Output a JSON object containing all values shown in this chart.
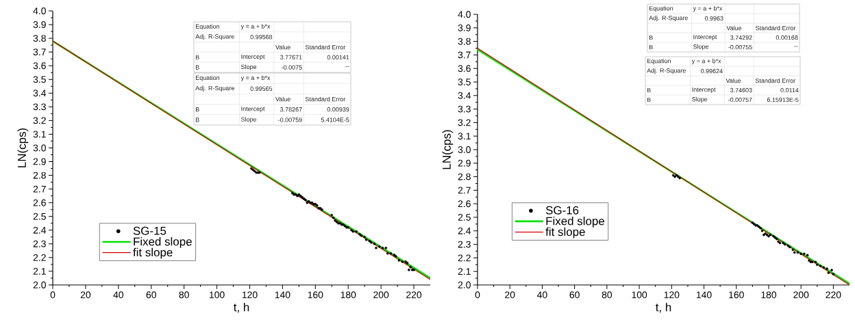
{
  "chart_data": [
    {
      "type": "scatter",
      "xlabel": "t, h",
      "ylabel": "LN(cps)",
      "xlim": [
        0,
        230
      ],
      "ylim": [
        2.0,
        4.0
      ],
      "xticks": [
        0,
        20,
        40,
        60,
        80,
        100,
        120,
        140,
        160,
        180,
        200,
        220
      ],
      "yticks": [
        {
          "value": 2.0,
          "label": "2.0"
        },
        {
          "value": 2.1,
          "label": "2.1"
        },
        {
          "value": 2.2,
          "label": "2.2"
        },
        {
          "value": 2.3,
          "label": "2.3"
        },
        {
          "value": 2.4,
          "label": "2.4"
        },
        {
          "value": 2.5,
          "label": "2.5"
        },
        {
          "value": 2.6,
          "label": "2.6"
        },
        {
          "value": 2.7,
          "label": "2.7"
        },
        {
          "value": 2.8,
          "label": "2.8"
        },
        {
          "value": 2.9,
          "label": "2.9"
        },
        {
          "value": 3.0,
          "label": "3.0"
        },
        {
          "value": 3.1,
          "label": "3.1"
        },
        {
          "value": 3.2,
          "label": "3.2"
        },
        {
          "value": 3.3,
          "label": "3.3"
        },
        {
          "value": 3.4,
          "label": "3.4"
        },
        {
          "value": 3.5,
          "label": "3.5"
        },
        {
          "value": 3.6,
          "label": "3.6"
        },
        {
          "value": 3.7,
          "label": "3.7"
        },
        {
          "value": 3.8,
          "label": "3.8"
        },
        {
          "value": 3.9,
          "label": "3.9"
        },
        {
          "value": 4.0,
          "label": "4.0"
        }
      ],
      "legend": "bottom left",
      "annotations": [
        "Equation",
        "y = a + b*x",
        "Adj. R-Square",
        "0.99568",
        "Value",
        "Standard Error",
        "B",
        "Intercept",
        "3.77671",
        "0.00141",
        "B",
        "Slope",
        "-0.0075",
        "--",
        "Equation",
        "y = a + b*x",
        "Adj. R-Square",
        "0.99565",
        "Value",
        "Standard Error",
        "B",
        "Intercept",
        "3.78267",
        "0.00939",
        "B",
        "Slope",
        "-0.00759",
        "5.4104E-5"
      ],
      "series": [
        {
          "name": "SG-15",
          "type": "scatter",
          "marker": "circle",
          "color": "#000000",
          "x": [
            121,
            122,
            123,
            124,
            125,
            126,
            146,
            147,
            148,
            149,
            150,
            151,
            152,
            153,
            154,
            155,
            156,
            157,
            158,
            159,
            160,
            161,
            162,
            163,
            164,
            170,
            171,
            172,
            173,
            174,
            175,
            176,
            177,
            178,
            179,
            180,
            182,
            183,
            185,
            187,
            188,
            190,
            191,
            193,
            194,
            196,
            197,
            199,
            201,
            203,
            204,
            206,
            208,
            209,
            211,
            213,
            215,
            216,
            217,
            218,
            219,
            220
          ],
          "values": [
            2.85,
            2.84,
            2.83,
            2.82,
            2.82,
            2.82,
            2.67,
            2.66,
            2.66,
            2.65,
            2.66,
            2.65,
            2.64,
            2.63,
            2.62,
            2.6,
            2.61,
            2.6,
            2.6,
            2.59,
            2.59,
            2.58,
            2.56,
            2.56,
            2.55,
            2.51,
            2.49,
            2.47,
            2.46,
            2.45,
            2.45,
            2.44,
            2.44,
            2.43,
            2.42,
            2.42,
            2.4,
            2.39,
            2.39,
            2.37,
            2.36,
            2.35,
            2.33,
            2.32,
            2.31,
            2.3,
            2.27,
            2.28,
            2.27,
            2.27,
            2.23,
            2.23,
            2.22,
            2.21,
            2.18,
            2.17,
            2.17,
            2.16,
            2.11,
            2.13,
            2.11,
            2.11
          ]
        },
        {
          "name": "Fixed slope",
          "type": "line",
          "marker": "none",
          "color": "#00e000",
          "x": [
            0,
            230
          ],
          "values": [
            3.78,
            2.05
          ]
        },
        {
          "name": "fit slope",
          "type": "line",
          "marker": "none",
          "color": "#d40000",
          "x": [
            0,
            230
          ],
          "values": [
            3.78,
            2.04
          ]
        }
      ]
    },
    {
      "type": "scatter",
      "xlabel": "t, h",
      "ylabel": "LN(cps)",
      "xlim": [
        0,
        230
      ],
      "ylim": [
        2.0,
        4.0
      ],
      "xticks": [
        0,
        20,
        40,
        60,
        80,
        100,
        120,
        140,
        160,
        180,
        200,
        220
      ],
      "yticks": [
        {
          "value": 2.0,
          "label": "2.0"
        },
        {
          "value": 2.1,
          "label": "2.1"
        },
        {
          "value": 2.2,
          "label": "2.2"
        },
        {
          "value": 2.3,
          "label": "2.3"
        },
        {
          "value": 2.4,
          "label": "2.4"
        },
        {
          "value": 2.5,
          "label": "2.5"
        },
        {
          "value": 2.6,
          "label": "2.6"
        },
        {
          "value": 2.7,
          "label": "2.7"
        },
        {
          "value": 2.8,
          "label": "2.8"
        },
        {
          "value": 2.9,
          "label": "2.9"
        },
        {
          "value": 3.0,
          "label": "3.0"
        },
        {
          "value": 3.1,
          "label": "3.1"
        },
        {
          "value": 3.2,
          "label": "3.2"
        },
        {
          "value": 3.3,
          "label": "3.3"
        },
        {
          "value": 3.4,
          "label": "3.4"
        },
        {
          "value": 3.5,
          "label": "3.5"
        },
        {
          "value": 3.6,
          "label": "3.6"
        },
        {
          "value": 3.7,
          "label": "3.7"
        },
        {
          "value": 3.8,
          "label": "3.8"
        },
        {
          "value": 3.9,
          "label": "3.9"
        },
        {
          "value": 4.0,
          "label": "4.0"
        }
      ],
      "legend": "bottom left",
      "annotations": [
        "Equation",
        "y = a + b*x",
        "Adj. R-Square",
        "0.9963",
        "Value",
        "Standard Error",
        "B",
        "Intercept",
        "3.74292",
        "0.00168",
        "B",
        "Slope",
        "-0.00755",
        "--",
        "Equation",
        "y = a + b*x",
        "Adj. R-Square",
        "0.99624",
        "Value",
        "Standard Error",
        "B",
        "Intercept",
        "3.74603",
        "0.0114",
        "B",
        "Slope",
        "-0.00757",
        "6.15913E-5"
      ],
      "series": [
        {
          "name": "SG-16",
          "type": "scatter",
          "marker": "circle",
          "color": "#000000",
          "x": [
            121,
            122,
            123,
            124,
            125,
            170,
            171,
            172,
            173,
            174,
            175,
            176,
            177,
            178,
            179,
            180,
            181,
            183,
            184,
            185,
            186,
            187,
            189,
            190,
            192,
            193,
            195,
            196,
            198,
            200,
            202,
            204,
            205,
            206,
            207,
            209,
            210,
            212,
            214,
            216,
            217,
            219,
            220
          ],
          "values": [
            2.81,
            2.8,
            2.81,
            2.8,
            2.79,
            2.46,
            2.45,
            2.44,
            2.44,
            2.43,
            2.42,
            2.4,
            2.37,
            2.38,
            2.37,
            2.36,
            2.37,
            2.36,
            2.35,
            2.34,
            2.32,
            2.31,
            2.31,
            2.3,
            2.29,
            2.28,
            2.26,
            2.24,
            2.24,
            2.23,
            2.23,
            2.22,
            2.18,
            2.17,
            2.17,
            2.17,
            2.15,
            2.14,
            2.13,
            2.12,
            2.09,
            2.11,
            2.08
          ]
        },
        {
          "name": "Fixed slope",
          "type": "line",
          "marker": "none",
          "color": "#00e000",
          "x": [
            0,
            230
          ],
          "values": [
            3.74,
            2.01
          ]
        },
        {
          "name": "fit slope",
          "type": "line",
          "marker": "none",
          "color": "#d40000",
          "x": [
            0,
            230
          ],
          "values": [
            3.75,
            2.0
          ]
        }
      ]
    }
  ]
}
